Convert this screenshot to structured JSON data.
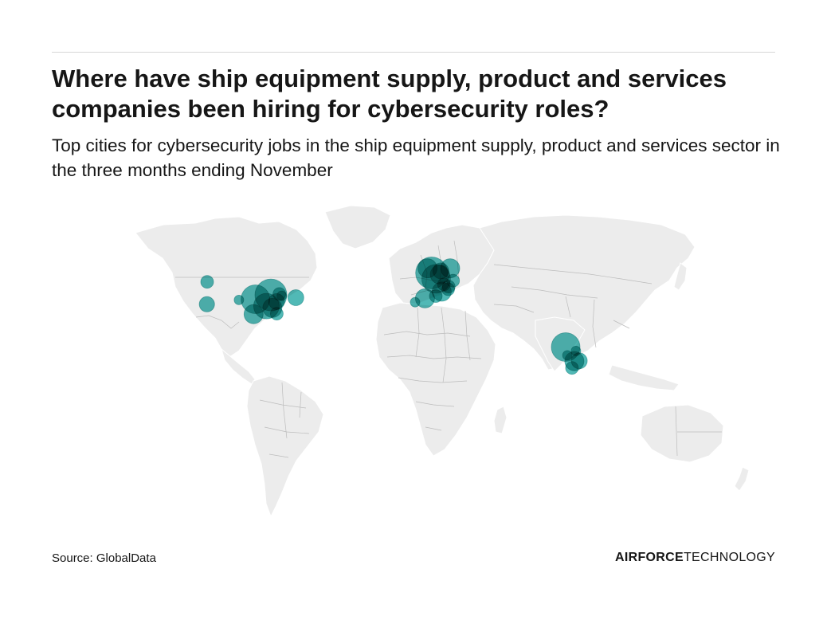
{
  "header": {
    "title": "Where have ship equipment supply, product and services companies been hiring for cybersecurity roles?",
    "subtitle": "Top cities for cybersecurity jobs in the ship equipment supply, product and services sector in the three months ending November"
  },
  "footer": {
    "source": "Source: GlobalData",
    "brand_strong": "AIRFORCE",
    "brand_light": "TECHNOLOGY"
  },
  "colors": {
    "bubble": "#0e9e9a",
    "land": "#ececec",
    "borders": "#bcbcbc",
    "text": "#161616"
  },
  "map": {
    "type": "world-bubble-map",
    "bubbles": [
      {
        "region": "north-america",
        "lat": 47.6,
        "lon": -122.3,
        "size": 2
      },
      {
        "region": "north-america",
        "lat": 37.8,
        "lon": -122.4,
        "size": 2.4
      },
      {
        "region": "north-america",
        "lat": 39.7,
        "lon": -105.0,
        "size": 1.5
      },
      {
        "region": "north-america",
        "lat": 41.9,
        "lon": -87.6,
        "size": 5
      },
      {
        "region": "north-america",
        "lat": 40.0,
        "lon": -96.0,
        "size": 4.5
      },
      {
        "region": "north-america",
        "lat": 37.0,
        "lon": -90.0,
        "size": 4
      },
      {
        "region": "north-america",
        "lat": 36.2,
        "lon": -86.8,
        "size": 3
      },
      {
        "region": "north-america",
        "lat": 39.0,
        "lon": -84.5,
        "size": 2.5
      },
      {
        "region": "north-america",
        "lat": 42.3,
        "lon": -83.0,
        "size": 2
      },
      {
        "region": "north-america",
        "lat": 40.7,
        "lon": -74.0,
        "size": 2.5
      },
      {
        "region": "north-america",
        "lat": 41.5,
        "lon": -81.7,
        "size": 1.5
      },
      {
        "region": "north-america",
        "lat": 33.5,
        "lon": -97.0,
        "size": 3
      },
      {
        "region": "north-america",
        "lat": 33.7,
        "lon": -84.4,
        "size": 2
      },
      {
        "region": "europe",
        "lat": 51.5,
        "lon": -0.1,
        "size": 5
      },
      {
        "region": "europe",
        "lat": 53.5,
        "lon": -2.3,
        "size": 3
      },
      {
        "region": "europe",
        "lat": 48.9,
        "lon": 2.35,
        "size": 4.5
      },
      {
        "region": "europe",
        "lat": 50.8,
        "lon": 4.4,
        "size": 3
      },
      {
        "region": "europe",
        "lat": 52.4,
        "lon": 4.9,
        "size": 2.5
      },
      {
        "region": "europe",
        "lat": 53.5,
        "lon": 10.0,
        "size": 3
      },
      {
        "region": "europe",
        "lat": 48.1,
        "lon": 11.6,
        "size": 2
      },
      {
        "region": "europe",
        "lat": 45.5,
        "lon": 9.2,
        "size": 2
      },
      {
        "region": "europe",
        "lat": 43.3,
        "lon": 5.4,
        "size": 3
      },
      {
        "region": "europe",
        "lat": 46.5,
        "lon": 6.6,
        "size": 2
      },
      {
        "region": "europe",
        "lat": 40.4,
        "lon": -3.7,
        "size": 3
      },
      {
        "region": "europe",
        "lat": 38.7,
        "lon": -9.1,
        "size": 1.5
      },
      {
        "region": "europe",
        "lat": 41.4,
        "lon": 2.2,
        "size": 2
      },
      {
        "region": "europe",
        "lat": 44.4,
        "lon": 8.9,
        "size": 2
      },
      {
        "region": "asia",
        "lat": 19.1,
        "lon": 72.9,
        "size": 4.5
      },
      {
        "region": "asia",
        "lat": 17.4,
        "lon": 78.5,
        "size": 1.5
      },
      {
        "region": "asia",
        "lat": 12.97,
        "lon": 77.6,
        "size": 3
      },
      {
        "region": "asia",
        "lat": 13.1,
        "lon": 80.3,
        "size": 2.5
      },
      {
        "region": "asia",
        "lat": 15.5,
        "lon": 73.8,
        "size": 1.5
      },
      {
        "region": "asia",
        "lat": 10.0,
        "lon": 76.3,
        "size": 2
      }
    ]
  }
}
